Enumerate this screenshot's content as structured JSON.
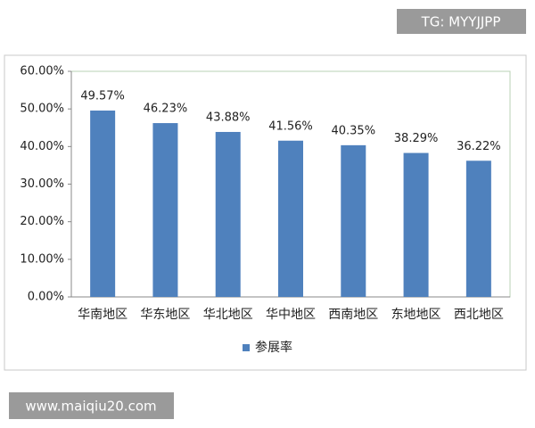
{
  "chart_data": {
    "type": "bar",
    "categories": [
      "华南地区",
      "华东地区",
      "华北地区",
      "华中地区",
      "西南地区",
      "东地地区",
      "西北地区"
    ],
    "series": [
      {
        "name": "参展率",
        "color": "#4f81bd",
        "values": [
          49.57,
          46.23,
          43.88,
          41.56,
          40.35,
          38.29,
          36.22
        ],
        "value_labels": [
          "49.57%",
          "46.23%",
          "43.88%",
          "41.56%",
          "40.35%",
          "38.29%",
          "36.22%"
        ]
      }
    ],
    "ylim": [
      0,
      60
    ],
    "yticks": [
      {
        "value": 0,
        "label": "0.00%"
      },
      {
        "value": 10,
        "label": "10.00%"
      },
      {
        "value": 20,
        "label": "20.00%"
      },
      {
        "value": 30,
        "label": "30.00%"
      },
      {
        "value": 40,
        "label": "40.00%"
      },
      {
        "value": 50,
        "label": "50.00%"
      },
      {
        "value": 60,
        "label": "60.00%"
      }
    ],
    "grid": false,
    "legend": "bottom"
  },
  "watermark_top": "TG: MYYJJPP",
  "watermark_bottom": "www.maiqiu20.com"
}
